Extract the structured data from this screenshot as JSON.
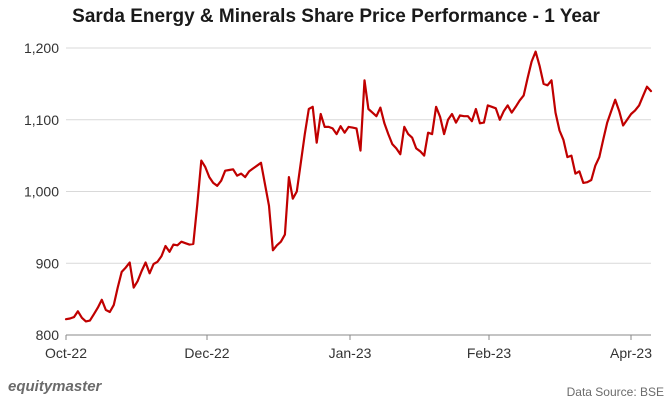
{
  "chart_data": {
    "type": "line",
    "title": "Sarda Energy & Minerals Share Price Performance - 1 Year",
    "xlabel": "",
    "ylabel": "",
    "ylim": [
      800,
      1200
    ],
    "yticks": [
      "800",
      "900",
      "1,000",
      "1,100",
      "1,200"
    ],
    "xticks": [
      "Oct-22",
      "Dec-22",
      "Jan-23",
      "Feb-23",
      "Apr-23"
    ],
    "grid": "horizontal",
    "series": [
      {
        "color": "#c00000",
        "values": [
          822,
          823,
          825,
          833,
          824,
          819,
          820,
          829,
          838,
          849,
          835,
          832,
          842,
          866,
          888,
          894,
          901,
          866,
          875,
          889,
          901,
          886,
          899,
          902,
          910,
          924,
          916,
          926,
          925,
          930,
          928,
          926,
          927,
          982,
          1043,
          1034,
          1020,
          1012,
          1008,
          1015,
          1029,
          1030,
          1031,
          1022,
          1025,
          1020,
          1028,
          1032,
          1036,
          1040,
          1010,
          980,
          918,
          925,
          930,
          940,
          1020,
          990,
          1000,
          1040,
          1080,
          1115,
          1118,
          1068,
          1108,
          1090,
          1090,
          1088,
          1080,
          1091,
          1082,
          1090,
          1089,
          1088,
          1057,
          1155,
          1115,
          1110,
          1105,
          1117,
          1095,
          1080,
          1066,
          1060,
          1052,
          1090,
          1080,
          1075,
          1060,
          1056,
          1050,
          1082,
          1080,
          1118,
          1104,
          1080,
          1100,
          1108,
          1096,
          1106,
          1105,
          1105,
          1098,
          1115,
          1095,
          1096,
          1120,
          1118,
          1116,
          1100,
          1112,
          1120,
          1110,
          1118,
          1127,
          1134,
          1158,
          1181,
          1195,
          1175,
          1150,
          1148,
          1155,
          1110,
          1085,
          1072,
          1048,
          1050,
          1025,
          1028,
          1012,
          1013,
          1016,
          1036,
          1048,
          1072,
          1096,
          1112,
          1128,
          1112,
          1092,
          1100,
          1108,
          1113,
          1120,
          1133,
          1146,
          1140
        ]
      }
    ]
  },
  "footer": {
    "brand": "equitymaster",
    "source": "Data Source: BSE"
  }
}
